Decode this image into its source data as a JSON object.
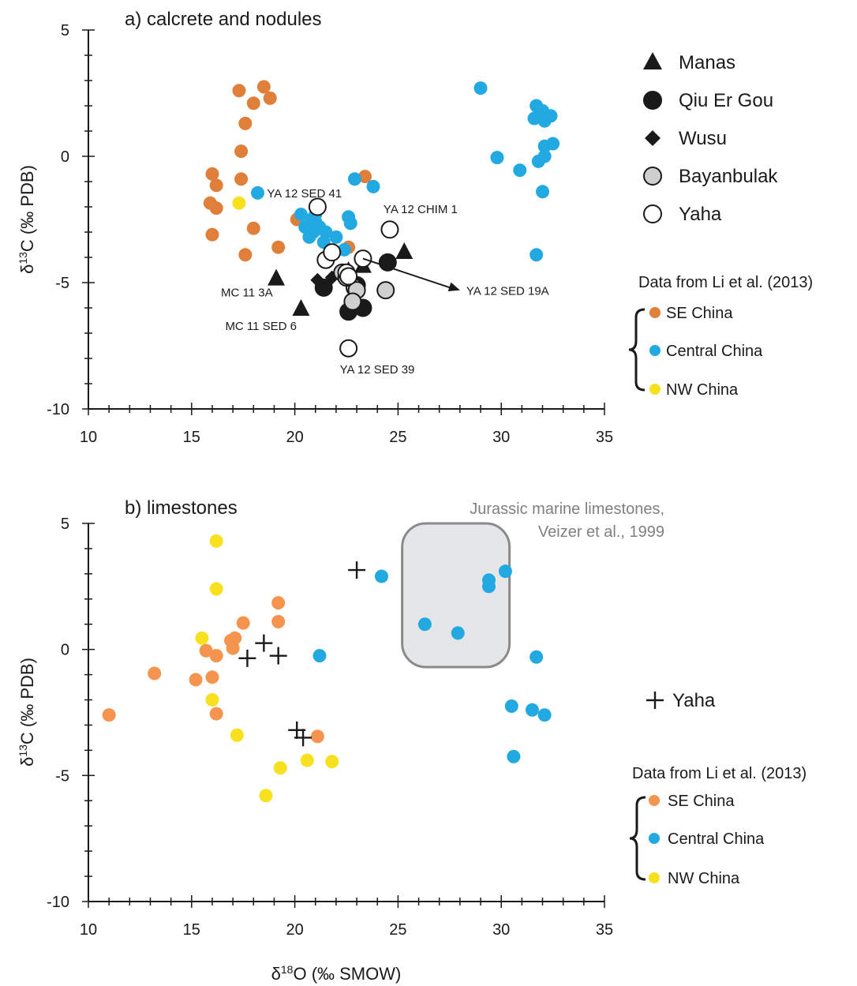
{
  "colors": {
    "se_china_a": "#E07F3A",
    "se_china_b": "#F4944E",
    "central_china": "#22A9E1",
    "nw_china": "#F7E11E",
    "black": "#1a1a1a",
    "qiu_er_gou_fill": "#1a1a1a",
    "bayanbulak_fill": "#cfcfcf",
    "yaha_fill": "#ffffff",
    "box_fill": "#e4e6e8",
    "box_stroke": "#8a8a8a",
    "box_text": "#808080"
  },
  "chart_data": [
    {
      "type": "scatter",
      "title": "a) calcrete and nodules",
      "xlabel": "",
      "ylabel": "δ13C (‰  PDB)",
      "xlim": [
        10,
        35
      ],
      "ylim": [
        -10,
        5
      ],
      "xticks": [
        10,
        15,
        20,
        25,
        30,
        35
      ],
      "yticks": [
        5,
        0,
        -5,
        -10
      ],
      "grid": false,
      "legend": {
        "position": "right",
        "entries": [
          "Manas",
          "Qiu Er Gou",
          "Wusu",
          "Bayanbulak",
          "Yaha"
        ],
        "source_heading": "Data from Li et al. (2013)",
        "source_entries": [
          "SE China",
          "Central China",
          "NW China"
        ]
      },
      "series": [
        {
          "name": "SE China",
          "marker": "circle",
          "color_key": "se_china_a",
          "points": [
            [
              16.0,
              -0.7
            ],
            [
              16.2,
              -1.15
            ],
            [
              15.9,
              -1.85
            ],
            [
              16.2,
              -2.05
            ],
            [
              16.0,
              -3.1
            ],
            [
              17.3,
              2.6
            ],
            [
              18.5,
              2.75
            ],
            [
              18.8,
              2.3
            ],
            [
              18.0,
              2.1
            ],
            [
              17.6,
              1.3
            ],
            [
              17.4,
              0.2
            ],
            [
              17.4,
              -0.9
            ],
            [
              18.0,
              -2.85
            ],
            [
              17.6,
              -3.9
            ],
            [
              19.2,
              -3.6
            ],
            [
              20.1,
              -2.5
            ],
            [
              22.6,
              -3.6
            ],
            [
              23.4,
              -0.8
            ]
          ]
        },
        {
          "name": "Central China",
          "marker": "circle",
          "color_key": "central_china",
          "points": [
            [
              29.0,
              2.7
            ],
            [
              31.7,
              2.0
            ],
            [
              32.0,
              1.8
            ],
            [
              31.6,
              1.5
            ],
            [
              32.1,
              1.4
            ],
            [
              32.4,
              1.6
            ],
            [
              32.5,
              0.5
            ],
            [
              32.1,
              0.4
            ],
            [
              32.1,
              0.0
            ],
            [
              31.8,
              -0.2
            ],
            [
              30.9,
              -0.55
            ],
            [
              29.8,
              -0.05
            ],
            [
              32.0,
              -1.4
            ],
            [
              31.7,
              -3.9
            ],
            [
              18.2,
              -1.45
            ],
            [
              22.9,
              -0.9
            ],
            [
              23.8,
              -1.2
            ],
            [
              20.3,
              -2.3
            ],
            [
              20.8,
              -2.5
            ],
            [
              21.0,
              -2.3
            ],
            [
              20.5,
              -2.8
            ],
            [
              21.2,
              -2.8
            ],
            [
              20.7,
              -3.2
            ],
            [
              21.4,
              -3.4
            ],
            [
              22.0,
              -3.2
            ],
            [
              22.4,
              -3.7
            ],
            [
              21.5,
              -3.0
            ],
            [
              21.0,
              -2.6
            ],
            [
              20.9,
              -3.0
            ],
            [
              22.6,
              -2.4
            ],
            [
              22.7,
              -2.65
            ]
          ]
        },
        {
          "name": "NW China",
          "marker": "circle",
          "color_key": "nw_china",
          "points": [
            [
              17.3,
              -1.85
            ]
          ]
        },
        {
          "name": "Manas",
          "marker": "triangle",
          "color_key": "black",
          "points": [
            [
              19.1,
              -4.8
            ],
            [
              20.3,
              -6.0
            ],
            [
              25.3,
              -3.75
            ],
            [
              23.3,
              -4.3
            ],
            [
              22.6,
              -4.5
            ]
          ]
        },
        {
          "name": "Qiu Er Gou",
          "marker": "circle",
          "color_key": "qiu_er_gou_fill",
          "points": [
            [
              21.4,
              -5.2
            ],
            [
              22.6,
              -6.15
            ],
            [
              23.3,
              -6.0
            ],
            [
              24.5,
              -4.2
            ],
            [
              23.0,
              -5.1
            ]
          ]
        },
        {
          "name": "Wusu",
          "marker": "diamond",
          "color_key": "black",
          "points": [
            [
              21.1,
              -4.9
            ],
            [
              21.8,
              -4.8
            ]
          ]
        },
        {
          "name": "Bayanbulak",
          "marker": "circle",
          "color_key": "bayanbulak_fill",
          "points": [
            [
              22.3,
              -4.6
            ],
            [
              22.9,
              -5.2
            ],
            [
              23.0,
              -5.3
            ],
            [
              22.8,
              -5.75
            ],
            [
              24.4,
              -5.3
            ],
            [
              22.5,
              -4.8
            ]
          ]
        },
        {
          "name": "Yaha",
          "marker": "circle",
          "color_key": "yaha_fill",
          "points": [
            [
              21.1,
              -2.0
            ],
            [
              24.6,
              -2.9
            ],
            [
              21.5,
              -4.1
            ],
            [
              21.8,
              -3.8
            ],
            [
              23.3,
              -4.05
            ],
            [
              22.5,
              -4.6
            ],
            [
              22.6,
              -4.75
            ],
            [
              22.6,
              -7.6
            ]
          ]
        }
      ],
      "annotations": [
        {
          "text": "YA 12 SED 41",
          "x": 21.1,
          "y": -2.0
        },
        {
          "text": "YA 12 CHIM 1",
          "x": 24.6,
          "y": -2.9
        },
        {
          "text": "YA 12 SED 19A",
          "x": 23.3,
          "y": -4.05,
          "arrow_to": [
            28.0,
            -5.3
          ]
        },
        {
          "text": "MC 11 3A",
          "x": 19.1,
          "y": -4.8
        },
        {
          "text": "MC 11 SED 6",
          "x": 20.3,
          "y": -6.0
        },
        {
          "text": "YA 12 SED 39",
          "x": 22.6,
          "y": -7.6
        }
      ]
    },
    {
      "type": "scatter",
      "title": "b) limestones",
      "xlabel": "δ18O (‰ SMOW)",
      "ylabel": "δ13C (‰ PDB)",
      "xlim": [
        10,
        35
      ],
      "ylim": [
        -10,
        5
      ],
      "xticks": [
        10,
        15,
        20,
        25,
        30,
        35
      ],
      "yticks": [
        5,
        0,
        -5,
        -10
      ],
      "grid": false,
      "legend": {
        "position": "right",
        "entries": [
          "Yaha"
        ],
        "source_heading": "Data from Li et al. (2013)",
        "source_entries": [
          "SE China",
          "Central China",
          "NW China"
        ]
      },
      "region": {
        "label_line1": "Jurassic marine limestones,",
        "label_line2": "Veizer et al., 1999",
        "x_range": [
          25.2,
          30.4
        ],
        "y_range": [
          -0.7,
          5.0
        ]
      },
      "series": [
        {
          "name": "SE China",
          "marker": "circle",
          "color_key": "se_china_b",
          "points": [
            [
              11.0,
              -2.6
            ],
            [
              13.2,
              -0.95
            ],
            [
              15.2,
              -1.2
            ],
            [
              16.0,
              -1.1
            ],
            [
              15.7,
              -0.05
            ],
            [
              16.2,
              -0.25
            ],
            [
              16.9,
              0.35
            ],
            [
              17.1,
              0.45
            ],
            [
              17.0,
              0.05
            ],
            [
              17.5,
              1.05
            ],
            [
              19.2,
              1.1
            ],
            [
              19.2,
              1.85
            ],
            [
              16.2,
              -2.55
            ],
            [
              21.1,
              -3.45
            ]
          ]
        },
        {
          "name": "Central China",
          "marker": "circle",
          "color_key": "central_china",
          "points": [
            [
              24.2,
              2.9
            ],
            [
              30.2,
              3.1
            ],
            [
              29.4,
              2.75
            ],
            [
              29.4,
              2.5
            ],
            [
              26.3,
              1.0
            ],
            [
              27.9,
              0.65
            ],
            [
              21.2,
              -0.25
            ],
            [
              31.7,
              -0.3
            ],
            [
              30.5,
              -2.25
            ],
            [
              31.5,
              -2.4
            ],
            [
              32.1,
              -2.6
            ],
            [
              30.6,
              -4.25
            ]
          ]
        },
        {
          "name": "NW China",
          "marker": "circle",
          "color_key": "nw_china",
          "points": [
            [
              16.2,
              4.3
            ],
            [
              16.2,
              2.4
            ],
            [
              15.5,
              0.45
            ],
            [
              16.0,
              -2.0
            ],
            [
              17.2,
              -3.4
            ],
            [
              19.3,
              -4.7
            ],
            [
              20.6,
              -4.4
            ],
            [
              21.8,
              -4.45
            ],
            [
              18.6,
              -5.8
            ]
          ]
        },
        {
          "name": "Yaha",
          "marker": "plus",
          "color_key": "black",
          "points": [
            [
              23.0,
              3.15
            ],
            [
              18.5,
              0.25
            ],
            [
              17.7,
              -0.35
            ],
            [
              19.2,
              -0.25
            ],
            [
              20.1,
              -3.2
            ],
            [
              20.4,
              -3.5
            ]
          ]
        }
      ]
    }
  ]
}
